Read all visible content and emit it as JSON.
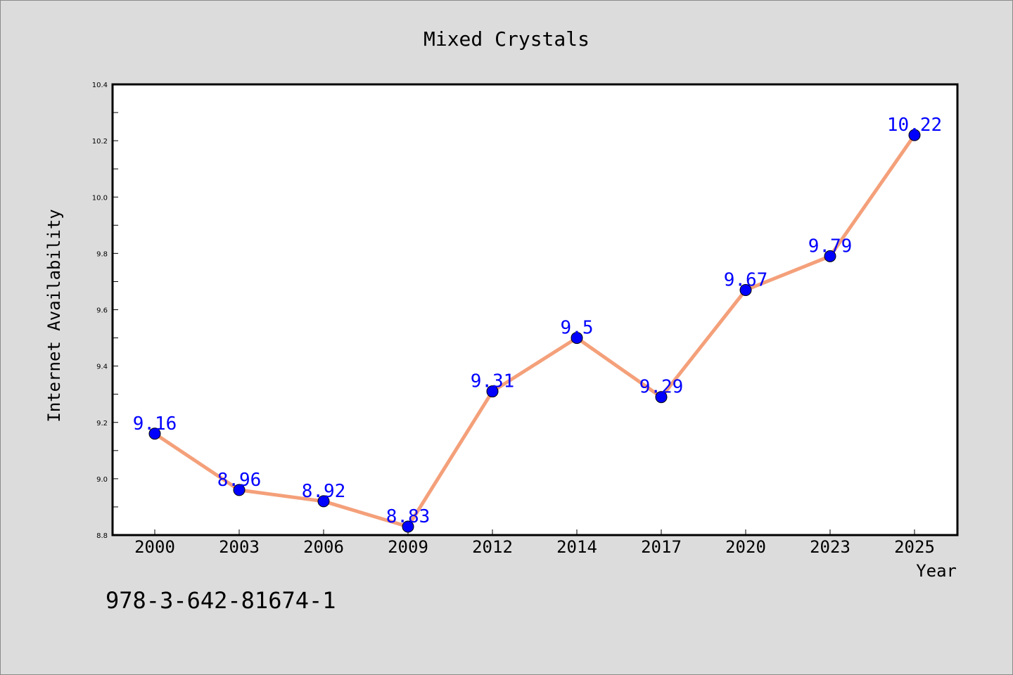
{
  "chart_data": {
    "type": "line",
    "title": "Mixed Crystals",
    "xlabel": "Year",
    "ylabel": "Internet Availability",
    "categories": [
      "2000",
      "2003",
      "2006",
      "2009",
      "2012",
      "2014",
      "2017",
      "2020",
      "2023",
      "2025"
    ],
    "series": [
      {
        "values": [
          9.16,
          8.96,
          8.92,
          8.83,
          9.31,
          9.5,
          9.29,
          9.67,
          9.79,
          10.22
        ]
      }
    ],
    "data_labels": [
      "9.16",
      "8.96",
      "8.92",
      "8.83",
      "9.31",
      "9.5",
      "9.29",
      "9.67",
      "9.79",
      "10.22"
    ],
    "ylim": [
      8.8,
      10.4
    ],
    "yticks": [
      "8.8",
      "9.0",
      "9.2",
      "9.4",
      "9.6",
      "9.8",
      "10.0",
      "10.2",
      "10.4"
    ],
    "grid": false,
    "legend": "none",
    "colors": {
      "line": "#f4a07a",
      "marker": "#0000ff",
      "label": "#0000ff",
      "plot_background": "#ffffff",
      "figure_background": "#dcdcdc"
    }
  },
  "footer": {
    "code": "978-3-642-81674-1"
  }
}
